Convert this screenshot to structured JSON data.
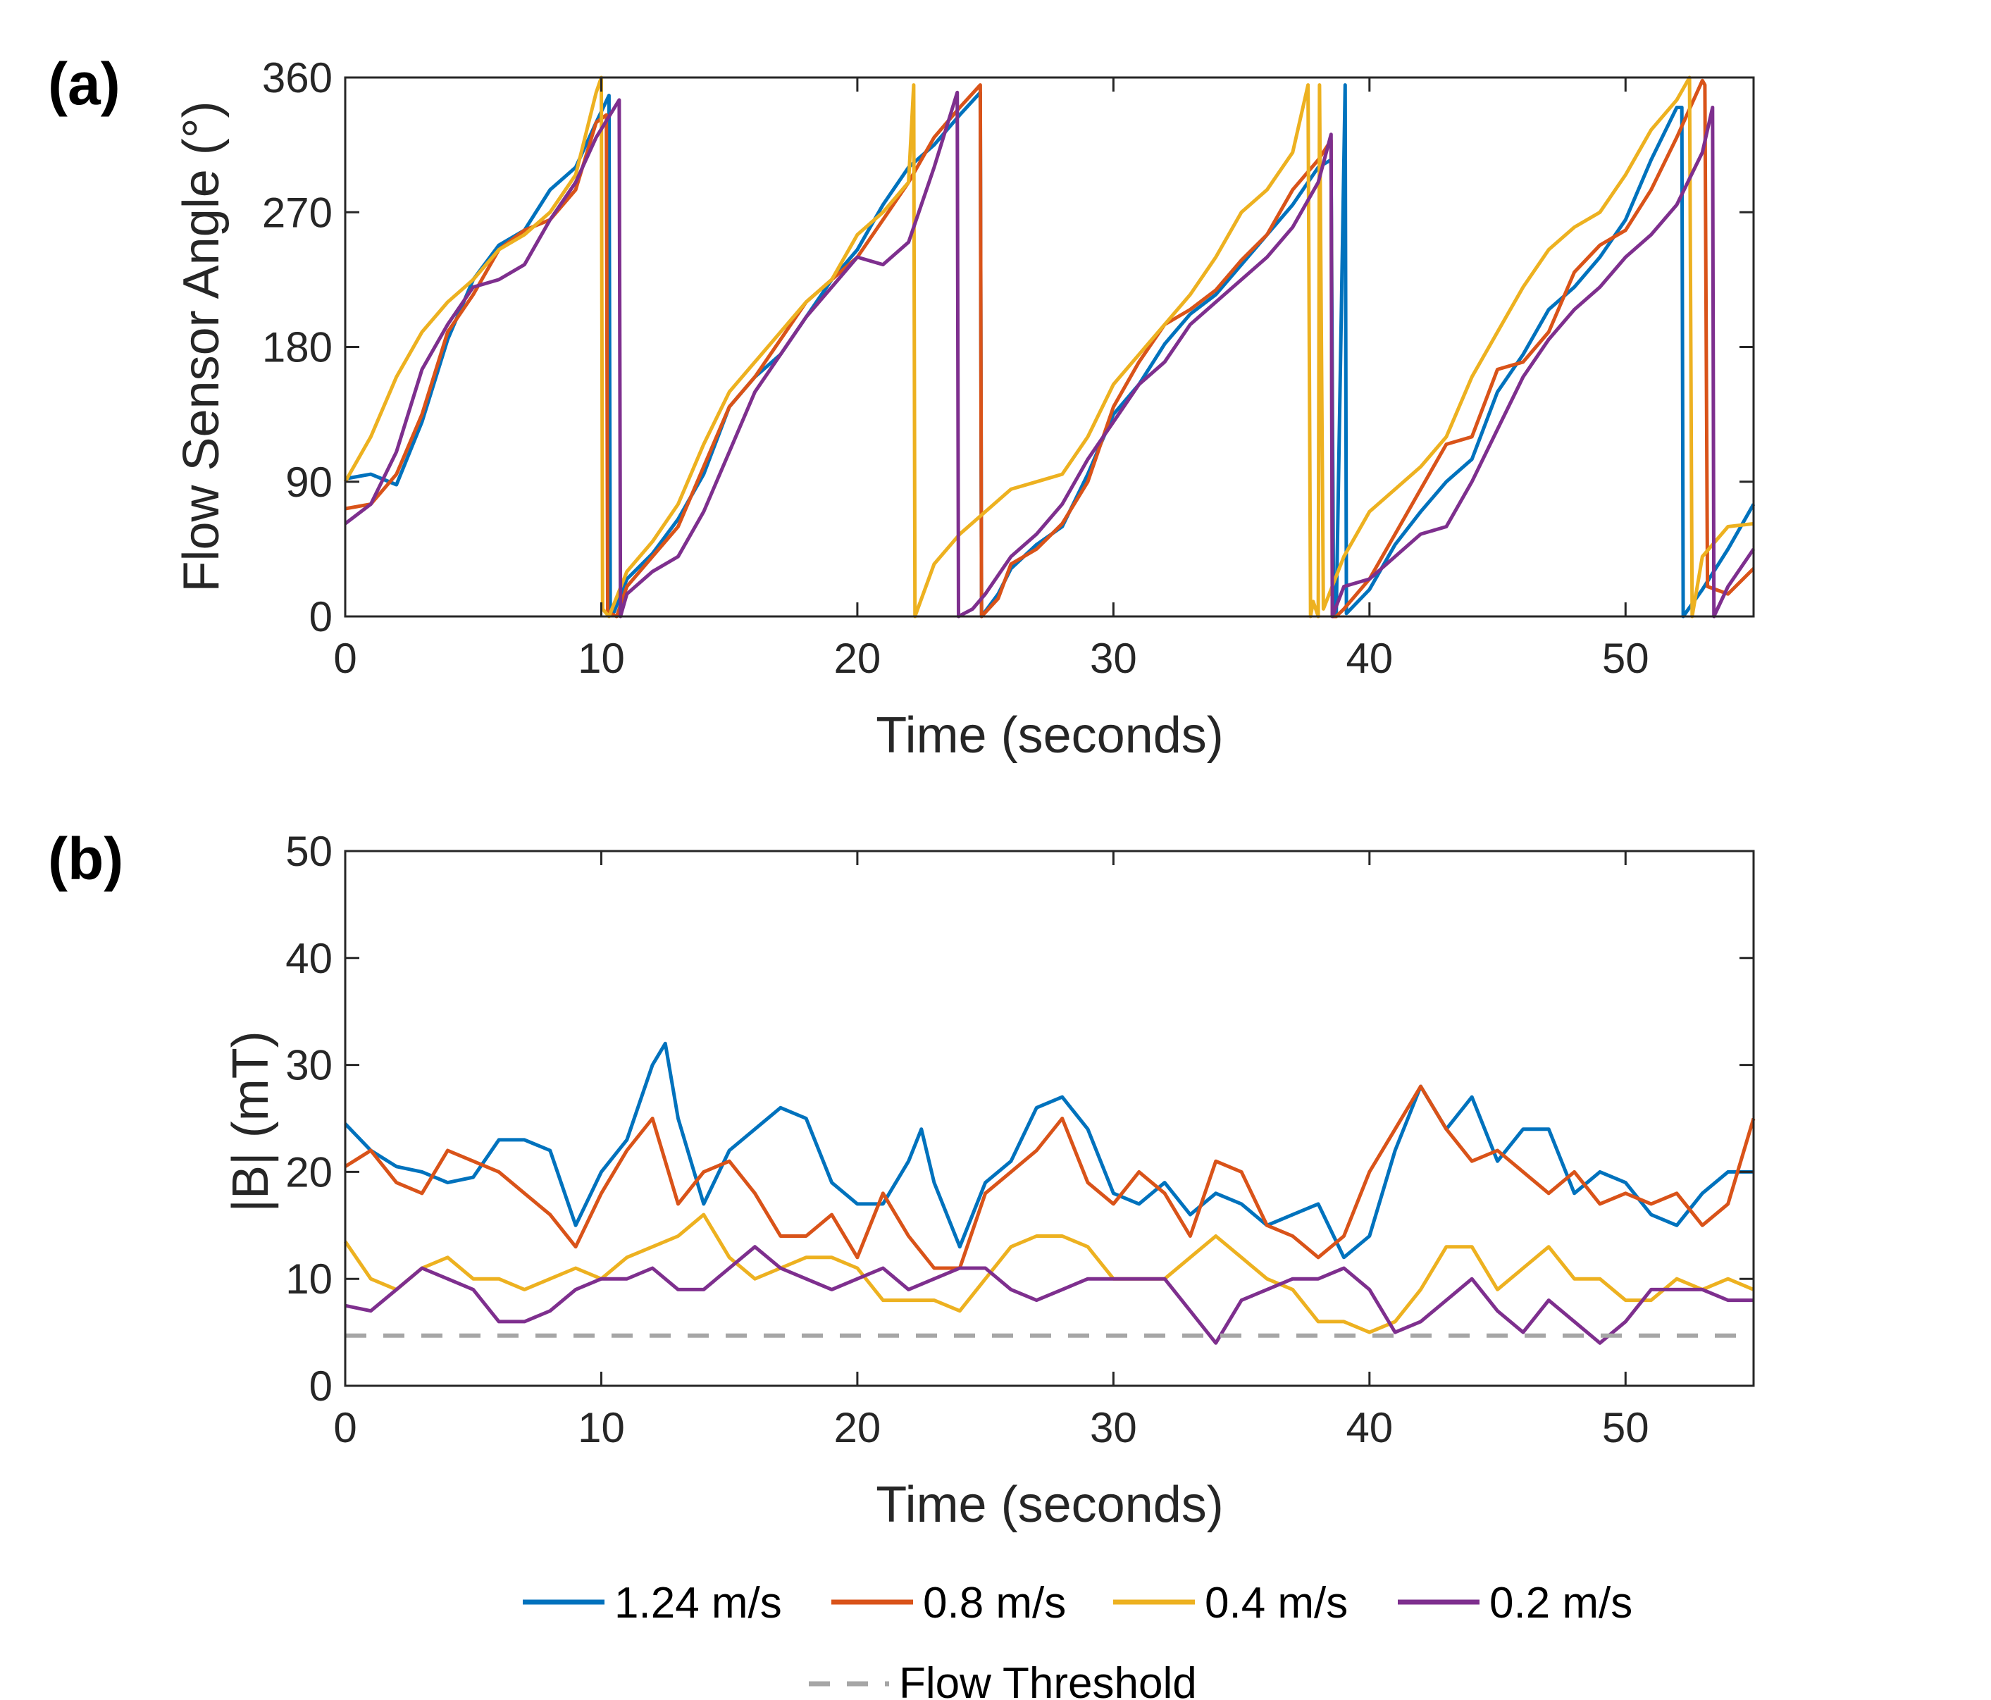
{
  "colors": {
    "v124": "#0072BD",
    "v08": "#D95319",
    "v04": "#EDB120",
    "v02": "#7E2F8E",
    "threshold": "#A6A6A6",
    "axis": "#262626"
  },
  "legend": {
    "items": [
      {
        "label": "1.24 m/s",
        "color": "#0072BD",
        "style": "solid"
      },
      {
        "label": "0.8 m/s",
        "color": "#D95319",
        "style": "solid"
      },
      {
        "label": "0.4 m/s",
        "color": "#EDB120",
        "style": "solid"
      },
      {
        "label": "0.2 m/s",
        "color": "#7E2F8E",
        "style": "solid"
      },
      {
        "label": "Flow Threshold",
        "color": "#A6A6A6",
        "style": "dashed"
      }
    ]
  },
  "chart_data": [
    {
      "panel_label": "(a)",
      "type": "line",
      "xlabel": "Time (seconds)",
      "ylabel": "Flow Sensor Angle (°)",
      "xlim": [
        0,
        55
      ],
      "ylim": [
        0,
        360
      ],
      "xticks": [
        0,
        10,
        20,
        30,
        40,
        50
      ],
      "yticks": [
        0,
        90,
        180,
        270,
        360
      ],
      "grid": false,
      "series": [
        {
          "name": "1.24 m/s",
          "color": "#0072BD",
          "x": [
            0,
            1,
            2,
            3,
            4,
            5,
            6,
            7,
            8,
            9,
            9.8,
            10.3,
            10.35,
            10.5,
            11,
            12,
            13,
            14,
            15,
            16,
            17,
            18,
            19,
            20,
            21,
            22,
            23,
            24,
            24.8,
            24.85,
            25.5,
            26,
            27,
            28,
            29,
            30,
            31,
            32,
            33,
            34,
            35,
            36,
            37,
            38,
            38.5,
            38.6,
            38.7,
            39.05,
            39.1,
            40,
            41,
            42,
            43,
            44,
            45,
            46,
            47,
            48,
            49,
            50,
            51,
            52,
            52.2,
            52.25,
            53,
            54,
            55
          ],
          "y": [
            92,
            95,
            88,
            130,
            185,
            225,
            248,
            258,
            285,
            300,
            330,
            348,
            5,
            3,
            25,
            42,
            65,
            95,
            140,
            160,
            175,
            200,
            225,
            245,
            275,
            300,
            315,
            335,
            350,
            0,
            15,
            32,
            48,
            60,
            95,
            135,
            155,
            182,
            202,
            215,
            235,
            255,
            275,
            300,
            305,
            0,
            0,
            355,
            2,
            18,
            48,
            70,
            90,
            105,
            150,
            175,
            205,
            220,
            240,
            265,
            305,
            340,
            340,
            0,
            18,
            45,
            75
          ]
        },
        {
          "name": "0.8 m/s",
          "color": "#D95319",
          "x": [
            0,
            1,
            2,
            3,
            4,
            5,
            6,
            7,
            8,
            9,
            9.8,
            10.2,
            10.25,
            10.6,
            11,
            12,
            13,
            14,
            15,
            16,
            17,
            18,
            19,
            20,
            21,
            22,
            23,
            24,
            24.8,
            24.85,
            25.5,
            26,
            27,
            28,
            29,
            30,
            31,
            32,
            33,
            34,
            35,
            36,
            37,
            38,
            38.5,
            38.55,
            38.7,
            39,
            40,
            41,
            42,
            43,
            44,
            45,
            46,
            47,
            48,
            49,
            50,
            51,
            52,
            53,
            53.1,
            53.2,
            54,
            55
          ],
          "y": [
            72,
            75,
            95,
            135,
            190,
            215,
            245,
            258,
            265,
            285,
            330,
            335,
            3,
            0,
            20,
            40,
            60,
            100,
            140,
            160,
            185,
            210,
            225,
            240,
            265,
            290,
            320,
            340,
            355,
            0,
            12,
            35,
            45,
            62,
            90,
            140,
            170,
            195,
            205,
            218,
            238,
            255,
            285,
            305,
            318,
            0,
            0,
            5,
            25,
            55,
            85,
            115,
            120,
            165,
            170,
            190,
            230,
            248,
            258,
            285,
            320,
            358,
            355,
            20,
            15,
            32
          ]
        },
        {
          "name": "0.4 m/s",
          "color": "#EDB120",
          "x": [
            0,
            1,
            2,
            3,
            4,
            5,
            6,
            7,
            8,
            9,
            9.8,
            10.0,
            10.05,
            10.3,
            11,
            12,
            13,
            14,
            15,
            16,
            17,
            18,
            19,
            20,
            21,
            22,
            22.2,
            22.25,
            23,
            24,
            25,
            26,
            27,
            28,
            29,
            30,
            31,
            32,
            33,
            34,
            35,
            36,
            37,
            37.6,
            37.7,
            37.8,
            38.0,
            38.05,
            38.2,
            39,
            40,
            41,
            42,
            43,
            44,
            45,
            46,
            47,
            48,
            49,
            50,
            51,
            52,
            52.5,
            52.6,
            53,
            54,
            55
          ],
          "y": [
            90,
            120,
            160,
            190,
            210,
            225,
            245,
            255,
            270,
            295,
            350,
            360,
            5,
            0,
            30,
            50,
            75,
            115,
            150,
            170,
            190,
            210,
            225,
            255,
            270,
            290,
            355,
            0,
            35,
            55,
            70,
            85,
            90,
            95,
            120,
            155,
            175,
            195,
            215,
            240,
            270,
            285,
            310,
            355,
            0,
            10,
            0,
            355,
            5,
            40,
            70,
            85,
            100,
            120,
            160,
            190,
            220,
            245,
            260,
            270,
            295,
            325,
            345,
            360,
            0,
            40,
            60,
            62
          ]
        },
        {
          "name": "0.2 m/s",
          "color": "#7E2F8E",
          "x": [
            0,
            1,
            2,
            3,
            4,
            5,
            6,
            7,
            8,
            9,
            9.8,
            10.7,
            10.75,
            11,
            12,
            13,
            14,
            15,
            16,
            17,
            18,
            19,
            20,
            21,
            22,
            23,
            23.9,
            23.95,
            24.5,
            25,
            26,
            27,
            28,
            29,
            30,
            31,
            32,
            33,
            34,
            35,
            36,
            37,
            38,
            38.5,
            38.55,
            39,
            40,
            41,
            42,
            43,
            44,
            45,
            46,
            47,
            48,
            49,
            50,
            51,
            52,
            53,
            53.4,
            53.45,
            54,
            55
          ],
          "y": [
            62,
            75,
            110,
            165,
            195,
            220,
            225,
            235,
            265,
            290,
            320,
            345,
            0,
            15,
            30,
            40,
            70,
            110,
            150,
            175,
            200,
            220,
            240,
            235,
            250,
            300,
            350,
            0,
            5,
            15,
            40,
            55,
            75,
            105,
            130,
            155,
            170,
            195,
            210,
            225,
            240,
            260,
            290,
            322,
            0,
            20,
            25,
            40,
            55,
            60,
            90,
            125,
            160,
            185,
            205,
            220,
            240,
            255,
            275,
            310,
            340,
            0,
            20,
            45
          ]
        }
      ]
    },
    {
      "panel_label": "(b)",
      "type": "line",
      "xlabel": "Time (seconds)",
      "ylabel": "|B| (mT)",
      "xlim": [
        0,
        55
      ],
      "ylim": [
        0,
        50
      ],
      "xticks": [
        0,
        10,
        20,
        30,
        40,
        50
      ],
      "yticks": [
        0,
        10,
        20,
        30,
        40,
        50
      ],
      "grid": false,
      "series": [
        {
          "name": "1.24 m/s",
          "color": "#0072BD",
          "x": [
            0,
            1,
            2,
            3,
            4,
            5,
            6,
            7,
            8,
            9,
            10,
            11,
            12,
            12.5,
            13,
            14,
            15,
            16,
            17,
            18,
            19,
            20,
            21,
            22,
            22.5,
            23,
            24,
            25,
            26,
            27,
            28,
            29,
            30,
            31,
            32,
            33,
            34,
            35,
            36,
            37,
            38,
            39,
            40,
            41,
            42,
            43,
            44,
            45,
            46,
            47,
            48,
            49,
            50,
            51,
            52,
            53,
            54,
            55
          ],
          "y": [
            24.5,
            22,
            20.5,
            20,
            19,
            19.5,
            23,
            23,
            22,
            15,
            20,
            23,
            30,
            32,
            25,
            17,
            22,
            24,
            26,
            25,
            19,
            17,
            17,
            21,
            24,
            19,
            13,
            19,
            21,
            26,
            27,
            24,
            18,
            17,
            19,
            16,
            18,
            17,
            15,
            16,
            17,
            12,
            14,
            22,
            28,
            24,
            27,
            21,
            24,
            24,
            18,
            20,
            19,
            16,
            15,
            18,
            20,
            20
          ]
        },
        {
          "name": "0.8 m/s",
          "color": "#D95319",
          "x": [
            0,
            1,
            2,
            3,
            4,
            5,
            6,
            7,
            8,
            9,
            10,
            11,
            12,
            13,
            14,
            15,
            16,
            17,
            18,
            19,
            20,
            21,
            22,
            23,
            24,
            25,
            26,
            27,
            28,
            29,
            30,
            31,
            32,
            33,
            34,
            35,
            36,
            37,
            38,
            39,
            40,
            41,
            42,
            43,
            44,
            45,
            46,
            47,
            48,
            49,
            50,
            51,
            52,
            53,
            54,
            55
          ],
          "y": [
            20.5,
            22,
            19,
            18,
            22,
            21,
            20,
            18,
            16,
            13,
            18,
            22,
            25,
            17,
            20,
            21,
            18,
            14,
            14,
            16,
            12,
            18,
            14,
            11,
            11,
            18,
            20,
            22,
            25,
            19,
            17,
            20,
            18,
            14,
            21,
            20,
            15,
            14,
            12,
            14,
            20,
            24,
            28,
            24,
            21,
            22,
            20,
            18,
            20,
            17,
            18,
            17,
            18,
            15,
            17,
            25
          ]
        },
        {
          "name": "0.4 m/s",
          "color": "#EDB120",
          "x": [
            0,
            1,
            2,
            3,
            4,
            5,
            6,
            7,
            8,
            9,
            10,
            11,
            12,
            13,
            14,
            15,
            16,
            17,
            18,
            19,
            20,
            21,
            22,
            23,
            24,
            25,
            26,
            27,
            28,
            29,
            30,
            31,
            32,
            33,
            34,
            35,
            36,
            37,
            38,
            39,
            40,
            41,
            42,
            43,
            44,
            45,
            46,
            47,
            48,
            49,
            50,
            51,
            52,
            53,
            54,
            55
          ],
          "y": [
            13.5,
            10,
            9,
            11,
            12,
            10,
            10,
            9,
            10,
            11,
            10,
            12,
            13,
            14,
            16,
            12,
            10,
            11,
            12,
            12,
            11,
            8,
            8,
            8,
            7,
            10,
            13,
            14,
            14,
            13,
            10,
            10,
            10,
            12,
            14,
            12,
            10,
            9,
            6,
            6,
            5,
            6,
            9,
            13,
            13,
            9,
            11,
            13,
            10,
            10,
            8,
            8,
            10,
            9,
            10,
            9
          ]
        },
        {
          "name": "0.2 m/s",
          "color": "#7E2F8E",
          "x": [
            0,
            1,
            2,
            3,
            4,
            5,
            6,
            7,
            8,
            9,
            10,
            11,
            12,
            13,
            14,
            15,
            16,
            17,
            18,
            19,
            20,
            21,
            22,
            23,
            24,
            25,
            26,
            27,
            28,
            29,
            30,
            31,
            32,
            33,
            34,
            35,
            36,
            37,
            38,
            39,
            40,
            41,
            42,
            43,
            44,
            45,
            46,
            47,
            48,
            49,
            50,
            51,
            52,
            53,
            54,
            55
          ],
          "y": [
            7.5,
            7,
            9,
            11,
            10,
            9,
            6,
            6,
            7,
            9,
            10,
            10,
            11,
            9,
            9,
            11,
            13,
            11,
            10,
            9,
            10,
            11,
            9,
            10,
            11,
            11,
            9,
            8,
            9,
            10,
            10,
            10,
            10,
            7,
            4,
            8,
            9,
            10,
            10,
            11,
            9,
            5,
            6,
            8,
            10,
            7,
            5,
            8,
            6,
            4,
            6,
            9,
            9,
            9,
            8,
            8
          ]
        },
        {
          "name": "Flow Threshold",
          "color": "#A6A6A6",
          "style": "dashed",
          "x": [
            0,
            55
          ],
          "y": [
            4.7,
            4.7
          ]
        }
      ]
    }
  ]
}
